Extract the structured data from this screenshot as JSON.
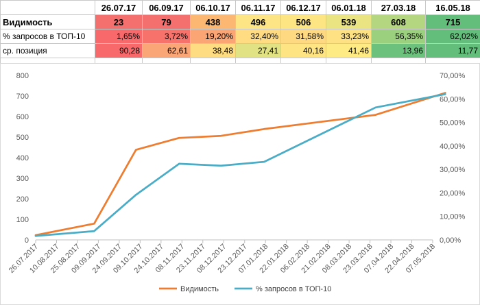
{
  "table": {
    "header": [
      "",
      "26.07.17",
      "06.09.17",
      "06.10.17",
      "06.11.17",
      "06.12.17",
      "06.01.18",
      "27.03.18",
      "16.05.18"
    ],
    "rows": [
      {
        "label": "Видимость",
        "cells": [
          "23",
          "79",
          "438",
          "496",
          "506",
          "539",
          "608",
          "715"
        ],
        "colors": [
          "#f4706e",
          "#f4706e",
          "#fcb872",
          "#fde484",
          "#fde583",
          "#ebe483",
          "#b5d680",
          "#63be7b"
        ]
      },
      {
        "label": "% запросов в ТОП-10",
        "cells": [
          "1,65%",
          "3,72%",
          "19,20%",
          "32,40%",
          "31,58%",
          "33,23%",
          "56,35%",
          "62,02%"
        ],
        "colors": [
          "#f8696b",
          "#f8726c",
          "#fca574",
          "#ffdb81",
          "#ffd981",
          "#fde183",
          "#9bd07f",
          "#63be7b"
        ]
      },
      {
        "label": "ср. позиция",
        "cells": [
          "90,28",
          "62,61",
          "38,48",
          "27,41",
          "40,16",
          "41,46",
          "13,96",
          "11,77"
        ],
        "colors": [
          "#f8696b",
          "#fba676",
          "#fedc82",
          "#e0e283",
          "#ffe483",
          "#ffeb84",
          "#6cc17c",
          "#63be7b"
        ]
      }
    ]
  },
  "chart_data": {
    "type": "line",
    "x": [
      "26.07.2017",
      "10.08.2017",
      "25.08.2017",
      "09.09.2017",
      "24.09.2017",
      "09.10.2017",
      "24.10.2017",
      "08.11.2017",
      "23.11.2017",
      "08.12.2017",
      "23.12.2017",
      "07.01.2018",
      "22.01.2018",
      "06.02.2018",
      "21.02.2018",
      "08.03.2018",
      "23.03.2018",
      "07.04.2018",
      "22.04.2018",
      "07.05.2018"
    ],
    "series": [
      {
        "name": "Видимость",
        "axis": "left",
        "color": "#ed7d31",
        "points": [
          [
            "26.07.2017",
            23
          ],
          [
            "06.09.2017",
            79
          ],
          [
            "06.10.2017",
            438
          ],
          [
            "06.11.2017",
            496
          ],
          [
            "06.12.2017",
            506
          ],
          [
            "06.01.2018",
            539
          ],
          [
            "27.03.2018",
            608
          ],
          [
            "16.05.2018",
            715
          ]
        ]
      },
      {
        "name": "% запросов в ТОП-10",
        "axis": "right",
        "color": "#4bacc6",
        "points": [
          [
            "26.07.2017",
            1.65
          ],
          [
            "06.09.2017",
            3.72
          ],
          [
            "06.10.2017",
            19.2
          ],
          [
            "06.11.2017",
            32.4
          ],
          [
            "06.12.2017",
            31.58
          ],
          [
            "06.01.2018",
            33.23
          ],
          [
            "27.03.2018",
            56.35
          ],
          [
            "16.05.2018",
            62.02
          ]
        ]
      }
    ],
    "y_left": {
      "ticks": [
        "0",
        "100",
        "200",
        "300",
        "400",
        "500",
        "600",
        "700",
        "800"
      ],
      "range": [
        0,
        800
      ]
    },
    "y_right": {
      "ticks": [
        "0,00%",
        "10,00%",
        "20,00%",
        "30,00%",
        "40,00%",
        "50,00%",
        "60,00%",
        "70,00%"
      ],
      "range": [
        0,
        70
      ]
    },
    "legend_position": "bottom",
    "grid": false
  }
}
